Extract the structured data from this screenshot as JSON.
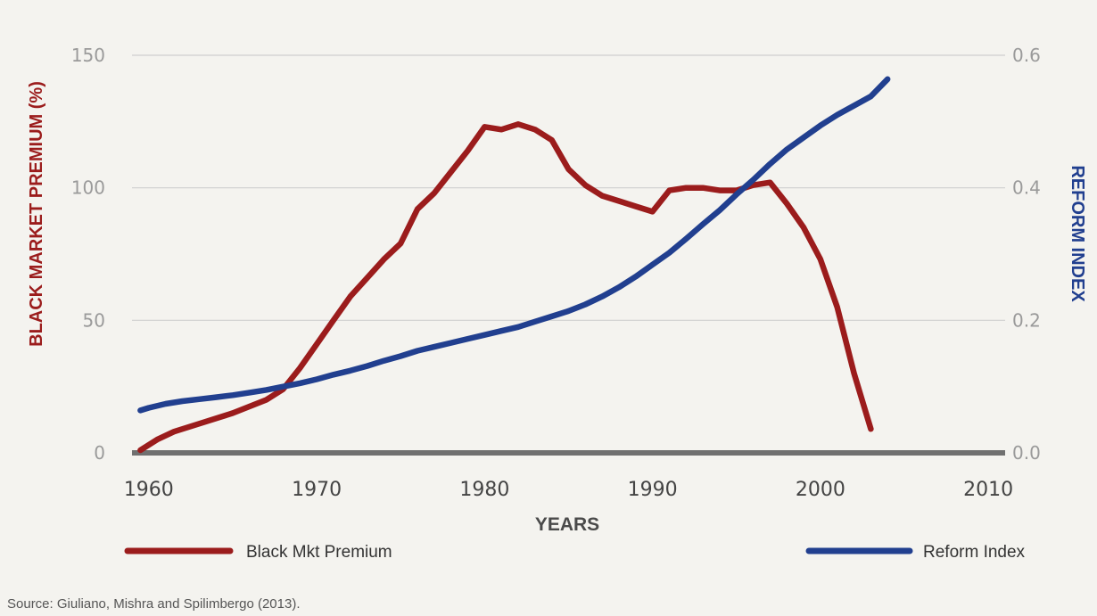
{
  "chart_data": {
    "type": "line",
    "xlabel": "YEARS",
    "ylabel_left": "BLACK MARKET PREMIUM (%)",
    "ylabel_right": "REFORM INDEX",
    "xlim": [
      1959,
      2011
    ],
    "ylim_left": [
      0,
      150
    ],
    "ylim_right": [
      0,
      0.6
    ],
    "x_ticks": [
      "1960",
      "1970",
      "1980",
      "1990",
      "2000",
      "2010"
    ],
    "y_ticks_left": [
      "0",
      "50",
      "100",
      "150"
    ],
    "y_ticks_right": [
      "0.0",
      "0.2",
      "0.4",
      "0.6"
    ],
    "grid": true,
    "legend_placement": "bottom",
    "source": "Source: Giuliano, Mishra and Spilimbergo (2013).",
    "series": [
      {
        "name": "Black Mkt Premium",
        "axis": "left",
        "color": "#9b1c1c",
        "x": [
          1959.5,
          1960.5,
          1961.5,
          1963,
          1965,
          1967,
          1968,
          1969,
          1970,
          1971,
          1972,
          1973,
          1974,
          1975,
          1976,
          1977,
          1978,
          1979,
          1980,
          1981,
          1982,
          1983,
          1984,
          1985,
          1986,
          1987,
          1988,
          1989,
          1990,
          1991,
          1992,
          1993,
          1994,
          1995,
          1996,
          1997,
          1998,
          1999,
          2000,
          2001,
          2002,
          2003
        ],
        "y": [
          1,
          5,
          8,
          11,
          15,
          20,
          24,
          32,
          41,
          50,
          59,
          66,
          73,
          79,
          92,
          98,
          106,
          114,
          123,
          122,
          124,
          122,
          118,
          107,
          101,
          97,
          95,
          93,
          91,
          99,
          100,
          100,
          99,
          99,
          101,
          102,
          94,
          85,
          73,
          55,
          30,
          9
        ]
      },
      {
        "name": "Reform Index",
        "axis": "right",
        "color": "#213f8f",
        "x": [
          1959.5,
          1960,
          1961,
          1962,
          1963,
          1964,
          1965,
          1966,
          1967,
          1968,
          1969,
          1970,
          1971,
          1972,
          1973,
          1974,
          1975,
          1976,
          1977,
          1978,
          1979,
          1980,
          1981,
          1982,
          1983,
          1984,
          1985,
          1986,
          1987,
          1988,
          1989,
          1990,
          1991,
          1992,
          1993,
          1994,
          1995,
          1996,
          1997,
          1998,
          1999,
          2000,
          2001,
          2002,
          2003,
          2004
        ],
        "y": [
          0.064,
          0.068,
          0.074,
          0.078,
          0.081,
          0.084,
          0.087,
          0.091,
          0.095,
          0.1,
          0.105,
          0.111,
          0.118,
          0.124,
          0.131,
          0.139,
          0.146,
          0.154,
          0.16,
          0.166,
          0.172,
          0.178,
          0.184,
          0.19,
          0.198,
          0.206,
          0.214,
          0.224,
          0.236,
          0.25,
          0.266,
          0.284,
          0.302,
          0.323,
          0.345,
          0.366,
          0.39,
          0.412,
          0.436,
          0.458,
          0.476,
          0.494,
          0.51,
          0.524,
          0.538,
          0.564
        ]
      }
    ]
  }
}
